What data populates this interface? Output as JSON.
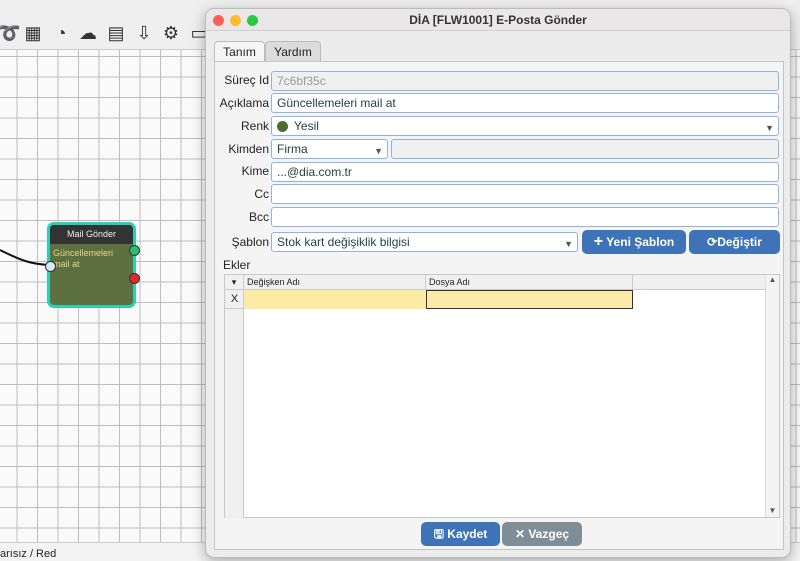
{
  "toolbar": {
    "icons": [
      "flow-icon",
      "calculator-icon",
      "timer-icon",
      "cloud-settings-icon",
      "calendar-icon",
      "cloud-download-icon",
      "gear-icon",
      "folder-icon"
    ]
  },
  "node": {
    "title": "Mail Gönder",
    "body": "Güncellemeleri mail at",
    "color": "#5c7040",
    "border_color": "#2ecfb0"
  },
  "status": {
    "text": "arısız / Red"
  },
  "window": {
    "title": "DİA [FLW1001] E-Posta Gönder",
    "tabs": [
      {
        "label": "Tanım"
      },
      {
        "label": "Yardım"
      }
    ],
    "form": {
      "surec_id": {
        "label": "Süreç Id",
        "value": "7c6bf35c"
      },
      "aciklama": {
        "label": "Açıklama",
        "value": "Güncellemeleri mail at"
      },
      "renk": {
        "label": "Renk",
        "value": "Yesil",
        "swatch": "#4e6b34"
      },
      "kimden": {
        "label": "Kimden",
        "type": "Firma",
        "value": ""
      },
      "kime": {
        "label": "Kime",
        "value": "...@dia.com.tr"
      },
      "cc": {
        "label": "Cc",
        "value": ""
      },
      "bcc": {
        "label": "Bcc",
        "value": ""
      },
      "sablon": {
        "label": "Şablon",
        "value": "Stok kart değişiklik bilgisi"
      },
      "new_template": "Yeni Şablon",
      "change": "Değiştir"
    },
    "attachments": {
      "label": "Ekler",
      "columns": [
        "Değişken Adı",
        "Dosya Adı"
      ],
      "rows": [
        {
          "marker": "X",
          "degisken": "",
          "dosya": ""
        }
      ]
    },
    "save": "Kaydet",
    "cancel": "Vazgeç"
  }
}
